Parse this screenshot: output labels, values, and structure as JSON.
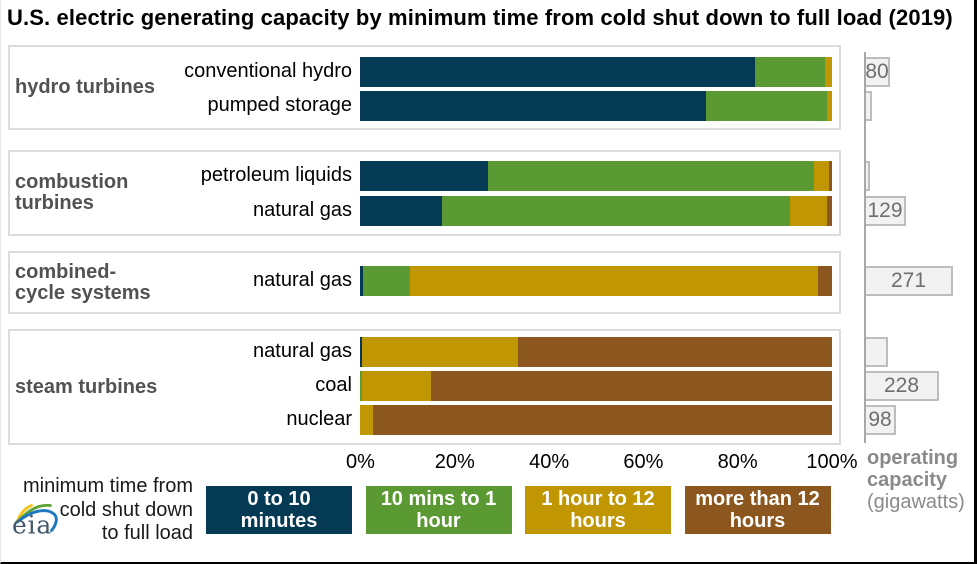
{
  "title": "U.S. electric generating capacity by minimum time from cold shut down to full load (2019)",
  "colors": {
    "navy": "#043a54",
    "green": "#5b9933",
    "gold": "#c09602",
    "brown": "#8c571f",
    "group_label": "#525252",
    "capacity_box_fill": "#f2f2f2",
    "capacity_box_border": "#bdbdbd",
    "capacity_text": "#6e6e6e",
    "axis_line": "#a8a8a8",
    "group_border": "#dcdcdc",
    "right_label_gray": "#8a8a8a"
  },
  "chart_data": {
    "type": "bar",
    "orientation": "horizontal",
    "stacked": "percent",
    "x_ticks": [
      "0%",
      "20%",
      "40%",
      "60%",
      "80%",
      "100%"
    ],
    "series_categories": [
      "0 to 10 minutes",
      "10 mins to 1 hour",
      "1 hour to 12 hours",
      "more than 12 hours"
    ],
    "series_colors": [
      "navy",
      "green",
      "gold",
      "brown"
    ],
    "groups": [
      {
        "label_lines": [
          "hydro turbines"
        ],
        "rows": [
          {
            "label": "conventional hydro",
            "values": [
              83.6,
              14.9,
              1.5,
              0
            ],
            "capacity_gw": 80,
            "capacity_label": "80"
          },
          {
            "label": "pumped storage",
            "values": [
              73.3,
              25.6,
              1.1,
              0
            ],
            "capacity_gw": 23,
            "capacity_label": ""
          }
        ]
      },
      {
        "label_lines": [
          "combustion",
          "turbines"
        ],
        "rows": [
          {
            "label": "petroleum liquids",
            "values": [
              27.2,
              68.9,
              3.2,
              0.7
            ],
            "capacity_gw": 18,
            "capacity_label": ""
          },
          {
            "label": "natural gas",
            "values": [
              17.3,
              73.7,
              7.9,
              1.1
            ],
            "capacity_gw": 129,
            "capacity_label": "129"
          }
        ]
      },
      {
        "label_lines": [
          "combined-",
          "cycle systems"
        ],
        "rows": [
          {
            "label": "natural gas",
            "values": [
              0.6,
              10.0,
              86.4,
              3.0
            ],
            "capacity_gw": 271,
            "capacity_label": "271"
          }
        ]
      },
      {
        "label_lines": [
          "steam turbines"
        ],
        "rows": [
          {
            "label": "natural gas",
            "values": [
              0.5,
              0,
              33.0,
              66.5
            ],
            "capacity_gw": 74,
            "capacity_label": ""
          },
          {
            "label": "coal",
            "values": [
              0,
              0.5,
              14.5,
              85.0
            ],
            "capacity_gw": 228,
            "capacity_label": "228"
          },
          {
            "label": "nuclear",
            "values": [
              0,
              0,
              2.8,
              97.2
            ],
            "capacity_gw": 98,
            "capacity_label": "98"
          }
        ]
      }
    ],
    "legend": {
      "caption_lines": [
        "minimum time from",
        "cold shut down",
        "to full load"
      ],
      "entries": [
        {
          "label_lines": [
            "0 to 10",
            "minutes"
          ],
          "color": "navy"
        },
        {
          "label_lines": [
            "10 mins to 1",
            "hour"
          ],
          "color": "green"
        },
        {
          "label_lines": [
            "1 hour to 12",
            "hours"
          ],
          "color": "gold"
        },
        {
          "label_lines": [
            "more than 12",
            "hours"
          ],
          "color": "brown"
        }
      ]
    },
    "right_axis_label": {
      "bold_lines": [
        "operating",
        "capacity"
      ],
      "regular_lines": [
        "(gigawatts)"
      ]
    },
    "logo": {
      "text": "eia"
    }
  }
}
